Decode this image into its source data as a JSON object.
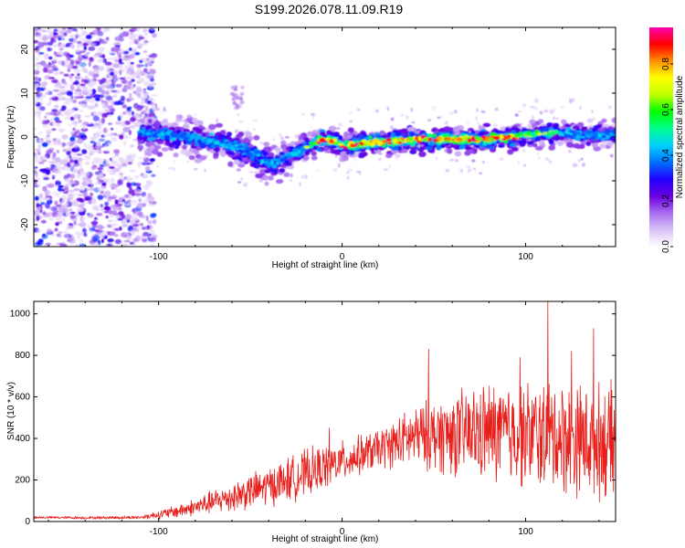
{
  "title": "S199.2026.078.11.09.R19",
  "chart_data": [
    {
      "type": "heatmap",
      "name": "spectrogram",
      "xlabel": "Height of straight line (km)",
      "ylabel": "Frequency (Hz)",
      "xlim": [
        -168,
        149
      ],
      "ylim": [
        -25,
        25
      ],
      "xticks": [
        -100,
        0,
        100
      ],
      "yticks": [
        -20,
        -10,
        0,
        10,
        20
      ],
      "colorbar": {
        "label": "Normalized spectral amplitude",
        "range": [
          0,
          0.96
        ],
        "ticks": [
          0.0,
          0.2,
          0.4,
          0.6,
          0.8
        ],
        "colors": [
          "#ffffff",
          "#d9c2f7",
          "#a86df0",
          "#6b00e0",
          "#2000ff",
          "#0070ff",
          "#00d0ff",
          "#00ff90",
          "#00ff00",
          "#c0ff00",
          "#ffff00",
          "#ff9000",
          "#ff0000",
          "#ff00b0"
        ]
      },
      "ridge": {
        "description": "frequency center of the dominant spectral feature vs height",
        "x": [
          -108,
          -95,
          -80,
          -70,
          -60,
          -50,
          -42,
          -37,
          -32,
          -25,
          -18,
          -10,
          -5,
          0,
          10,
          25,
          40,
          60,
          80,
          100,
          115,
          130,
          149
        ],
        "y": [
          1,
          0.5,
          -0.5,
          -1,
          -2,
          -3.5,
          -5.5,
          -6.5,
          -5,
          -3.5,
          -2,
          -0.5,
          -1,
          -2,
          -1.5,
          -1,
          -0.5,
          -0.5,
          -0.5,
          0.5,
          1,
          0.5,
          0.5
        ]
      }
    },
    {
      "type": "line",
      "name": "snr",
      "xlabel": "Height of straight line (km)",
      "ylabel": "SNR (10 * v/v)",
      "xlim": [
        -168,
        149
      ],
      "ylim": [
        0,
        1060
      ],
      "xticks": [
        -100,
        0,
        100
      ],
      "yticks": [
        0,
        200,
        400,
        600,
        800,
        1000
      ],
      "color": "#e8201c",
      "envelope": {
        "description": "approximate mean SNR and fluctuation amplitude vs height",
        "x": [
          -168,
          -140,
          -110,
          -95,
          -80,
          -60,
          -40,
          -20,
          0,
          20,
          40,
          60,
          80,
          100,
          120,
          149
        ],
        "mean": [
          20,
          18,
          20,
          40,
          70,
          120,
          170,
          230,
          290,
          350,
          410,
          420,
          430,
          420,
          410,
          380
        ],
        "spread": [
          6,
          6,
          8,
          25,
          40,
          70,
          90,
          110,
          90,
          90,
          140,
          190,
          230,
          240,
          260,
          260
        ]
      },
      "peaks": [
        {
          "x": 112,
          "y": 1060
        },
        {
          "x": 137,
          "y": 930
        },
        {
          "x": 97,
          "y": 790
        },
        {
          "x": 47,
          "y": 830
        },
        {
          "x": -7,
          "y": 450
        },
        {
          "x": 125,
          "y": 820
        }
      ]
    }
  ]
}
